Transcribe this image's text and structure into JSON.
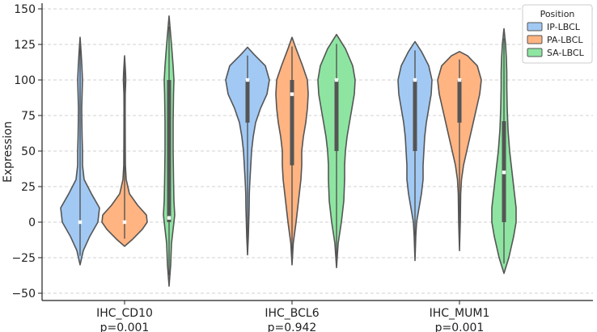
{
  "chart_data": {
    "type": "violin",
    "title": "",
    "xlabel": "",
    "ylabel": "Expression",
    "ylim": [
      -55,
      155
    ],
    "yticks": [
      -50,
      -25,
      0,
      25,
      50,
      75,
      100,
      125,
      150
    ],
    "grid": "horizontal dashed",
    "categories": [
      {
        "label": "IHC_CD10",
        "pvalue": "p=0.001"
      },
      {
        "label": "IHC_BCL6",
        "pvalue": "p=0.942"
      },
      {
        "label": "IHC_MUM1",
        "pvalue": "p=0.001"
      }
    ],
    "series": [
      {
        "name": "IP-LBCL",
        "color": "#a1c9f4"
      },
      {
        "name": "PA-LBCL",
        "color": "#ffb482"
      },
      {
        "name": "SA-LBCL",
        "color": "#8de5a1"
      }
    ],
    "legend": {
      "title": "Position",
      "placement": "top-right"
    },
    "violins": [
      {
        "category": "IHC_CD10",
        "series": "IP-LBCL",
        "min": -30,
        "max": 130,
        "median": 0,
        "q1": 0,
        "q3": 0,
        "density": [
          [
            -30,
            0
          ],
          [
            -20,
            4
          ],
          [
            -10,
            12
          ],
          [
            0,
            22
          ],
          [
            10,
            24
          ],
          [
            20,
            14
          ],
          [
            30,
            5
          ],
          [
            40,
            3
          ],
          [
            50,
            3
          ],
          [
            60,
            2.5
          ],
          [
            70,
            2.2
          ],
          [
            80,
            2
          ],
          [
            90,
            2.5
          ],
          [
            100,
            3
          ],
          [
            110,
            2.2
          ],
          [
            120,
            1.2
          ],
          [
            130,
            0
          ]
        ]
      },
      {
        "category": "IHC_CD10",
        "series": "PA-LBCL",
        "min": -17,
        "max": 117,
        "median": 0,
        "q1": 0,
        "q3": 0,
        "density": [
          [
            -17,
            0
          ],
          [
            -12,
            10
          ],
          [
            -5,
            22
          ],
          [
            0,
            28
          ],
          [
            5,
            27
          ],
          [
            12,
            16
          ],
          [
            20,
            6
          ],
          [
            30,
            2
          ],
          [
            40,
            1
          ],
          [
            60,
            0.8
          ],
          [
            80,
            0.7
          ],
          [
            90,
            0.8
          ],
          [
            100,
            1.5
          ],
          [
            105,
            1.2
          ],
          [
            117,
            0
          ]
        ]
      },
      {
        "category": "IHC_CD10",
        "series": "SA-LBCL",
        "min": -45,
        "max": 145,
        "median": 3,
        "q1": 0,
        "q3": 100,
        "density": [
          [
            -45,
            0
          ],
          [
            -30,
            2
          ],
          [
            -15,
            3
          ],
          [
            -5,
            5
          ],
          [
            0,
            6
          ],
          [
            5,
            7
          ],
          [
            15,
            6
          ],
          [
            30,
            5.5
          ],
          [
            50,
            5
          ],
          [
            70,
            5
          ],
          [
            90,
            5.5
          ],
          [
            100,
            6
          ],
          [
            110,
            5
          ],
          [
            125,
            3
          ],
          [
            145,
            0
          ]
        ]
      }
    ],
    "violins_bcl6": [
      {
        "category": "IHC_BCL6",
        "series": "IP-LBCL",
        "min": -23,
        "max": 123,
        "median": 100,
        "q1": 70,
        "q3": 100,
        "density": [
          [
            -23,
            0
          ],
          [
            -10,
            1
          ],
          [
            0,
            1.5
          ],
          [
            10,
            2
          ],
          [
            20,
            2.2
          ],
          [
            30,
            3
          ],
          [
            40,
            4
          ],
          [
            50,
            5
          ],
          [
            60,
            7
          ],
          [
            70,
            10
          ],
          [
            80,
            16
          ],
          [
            90,
            24
          ],
          [
            100,
            27
          ],
          [
            110,
            22
          ],
          [
            118,
            8
          ],
          [
            123,
            0
          ]
        ]
      },
      {
        "category": "IHC_BCL6",
        "series": "PA-LBCL",
        "min": -30,
        "max": 130,
        "median": 90,
        "q1": 40,
        "q3": 100,
        "density": [
          [
            -30,
            0
          ],
          [
            -15,
            1.5
          ],
          [
            0,
            5
          ],
          [
            15,
            8
          ],
          [
            30,
            11
          ],
          [
            40,
            12
          ],
          [
            50,
            12
          ],
          [
            60,
            14
          ],
          [
            70,
            17
          ],
          [
            80,
            19
          ],
          [
            90,
            20
          ],
          [
            100,
            19
          ],
          [
            110,
            13
          ],
          [
            122,
            5
          ],
          [
            130,
            0
          ]
        ]
      },
      {
        "category": "IHC_BCL6",
        "series": "SA-LBCL",
        "min": -32,
        "max": 132,
        "median": 100,
        "q1": 50,
        "q3": 100,
        "density": [
          [
            -32,
            0
          ],
          [
            -15,
            2
          ],
          [
            0,
            6
          ],
          [
            15,
            9
          ],
          [
            30,
            10
          ],
          [
            40,
            10
          ],
          [
            50,
            11
          ],
          [
            60,
            13
          ],
          [
            70,
            16
          ],
          [
            80,
            19
          ],
          [
            90,
            22
          ],
          [
            100,
            23
          ],
          [
            110,
            20
          ],
          [
            122,
            11
          ],
          [
            132,
            0
          ]
        ]
      }
    ],
    "violins_mum1": [
      {
        "category": "IHC_MUM1",
        "series": "IP-LBCL",
        "min": -27,
        "max": 127,
        "median": 100,
        "q1": 50,
        "q3": 100,
        "density": [
          [
            -27,
            0
          ],
          [
            -10,
            1
          ],
          [
            0,
            2
          ],
          [
            10,
            5
          ],
          [
            20,
            8
          ],
          [
            30,
            10
          ],
          [
            40,
            10
          ],
          [
            50,
            11
          ],
          [
            60,
            12
          ],
          [
            70,
            14
          ],
          [
            80,
            17
          ],
          [
            90,
            20
          ],
          [
            100,
            21
          ],
          [
            110,
            17
          ],
          [
            120,
            8
          ],
          [
            127,
            0
          ]
        ]
      },
      {
        "category": "IHC_MUM1",
        "series": "PA-LBCL",
        "min": -20,
        "max": 120,
        "median": 100,
        "q1": 70,
        "q3": 100,
        "density": [
          [
            -20,
            0
          ],
          [
            0,
            1
          ],
          [
            20,
            1.5
          ],
          [
            30,
            2.5
          ],
          [
            40,
            5
          ],
          [
            50,
            9
          ],
          [
            60,
            13
          ],
          [
            70,
            17
          ],
          [
            80,
            21
          ],
          [
            90,
            25
          ],
          [
            100,
            27
          ],
          [
            110,
            22
          ],
          [
            117,
            10
          ],
          [
            120,
            0
          ]
        ]
      },
      {
        "category": "IHC_MUM1",
        "series": "SA-LBCL",
        "min": -36,
        "max": 136,
        "median": 35,
        "q1": 0,
        "q3": 71,
        "density": [
          [
            -36,
            0
          ],
          [
            -25,
            6
          ],
          [
            -10,
            12
          ],
          [
            0,
            15
          ],
          [
            10,
            15
          ],
          [
            20,
            13
          ],
          [
            35,
            10
          ],
          [
            50,
            7
          ],
          [
            65,
            5
          ],
          [
            80,
            4
          ],
          [
            95,
            3.5
          ],
          [
            105,
            3.5
          ],
          [
            115,
            3
          ],
          [
            125,
            2
          ],
          [
            136,
            0
          ]
        ]
      }
    ]
  }
}
